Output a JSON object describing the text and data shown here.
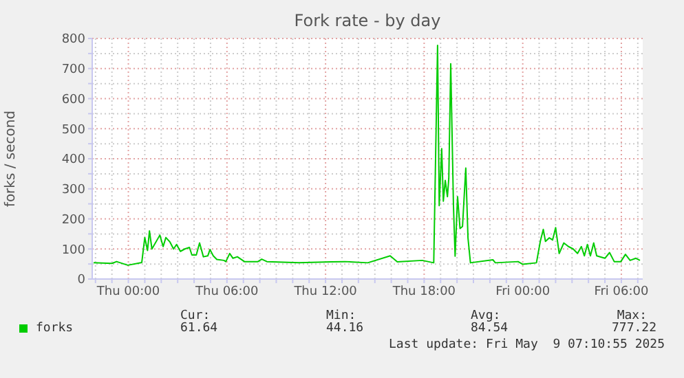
{
  "chart_data": {
    "type": "line",
    "title": "Fork rate - by day",
    "ylabel": "forks / second",
    "x": [
      "2025-05-07T21:53",
      "2025-05-07T23:00",
      "2025-05-07T23:17",
      "2025-05-07T23:58",
      "2025-05-08T00:49",
      "2025-05-08T01:00",
      "2025-05-08T01:10",
      "2025-05-08T01:17",
      "2025-05-08T01:26",
      "2025-05-08T01:55",
      "2025-05-08T02:07",
      "2025-05-08T02:17",
      "2025-05-08T02:32",
      "2025-05-08T02:45",
      "2025-05-08T02:56",
      "2025-05-08T03:10",
      "2025-05-08T03:26",
      "2025-05-08T03:43",
      "2025-05-08T03:52",
      "2025-05-08T04:08",
      "2025-05-08T04:20",
      "2025-05-08T04:34",
      "2025-05-08T04:50",
      "2025-05-08T04:58",
      "2025-05-08T05:10",
      "2025-05-08T05:23",
      "2025-05-08T05:49",
      "2025-05-08T05:56",
      "2025-05-08T06:10",
      "2025-05-08T06:22",
      "2025-05-08T06:38",
      "2025-05-08T07:04",
      "2025-05-08T07:53",
      "2025-05-08T08:07",
      "2025-05-08T08:26",
      "2025-05-08T10:23",
      "2025-05-08T12:20",
      "2025-05-08T13:10",
      "2025-05-08T14:34",
      "2025-05-08T15:56",
      "2025-05-08T16:22",
      "2025-05-08T17:53",
      "2025-05-08T18:35",
      "2025-05-08T18:49",
      "2025-05-08T18:55",
      "2025-05-08T19:04",
      "2025-05-08T19:10",
      "2025-05-08T19:17",
      "2025-05-08T19:25",
      "2025-05-08T19:30",
      "2025-05-08T19:37",
      "2025-05-08T19:47",
      "2025-05-08T19:53",
      "2025-05-08T20:02",
      "2025-05-08T20:11",
      "2025-05-08T20:20",
      "2025-05-08T20:32",
      "2025-05-08T20:40",
      "2025-05-08T20:49",
      "2025-05-08T22:11",
      "2025-05-08T22:20",
      "2025-05-08T23:43",
      "2025-05-09T00:00",
      "2025-05-09T00:50",
      "2025-05-09T01:04",
      "2025-05-09T01:15",
      "2025-05-09T01:23",
      "2025-05-09T01:37",
      "2025-05-09T01:49",
      "2025-05-09T02:00",
      "2025-05-09T02:13",
      "2025-05-09T02:30",
      "2025-05-09T02:47",
      "2025-05-09T03:04",
      "2025-05-09T03:20",
      "2025-05-09T03:34",
      "2025-05-09T03:45",
      "2025-05-09T03:56",
      "2025-05-09T04:07",
      "2025-05-09T04:19",
      "2025-05-09T04:30",
      "2025-05-09T05:00",
      "2025-05-09T05:17",
      "2025-05-09T05:34",
      "2025-05-09T05:58",
      "2025-05-09T06:15",
      "2025-05-09T06:32",
      "2025-05-09T06:53",
      "2025-05-09T07:08"
    ],
    "series": [
      {
        "name": "forks",
        "color": "#00cc00",
        "values": [
          54,
          52,
          58,
          46,
          55,
          138,
          95,
          160,
          100,
          146,
          108,
          138,
          123,
          100,
          115,
          92,
          100,
          105,
          80,
          80,
          120,
          74,
          77,
          98,
          77,
          65,
          62,
          58,
          85,
          69,
          74,
          58,
          58,
          66,
          58,
          54,
          57,
          58,
          54,
          77,
          57,
          62,
          54,
          777,
          244,
          434,
          259,
          328,
          274,
          335,
          716,
          244,
          76,
          274,
          168,
          175,
          369,
          137,
          54,
          64,
          54,
          58,
          49,
          54,
          125,
          165,
          125,
          137,
          130,
          171,
          85,
          120,
          108,
          100,
          85,
          108,
          77,
          115,
          77,
          120,
          77,
          69,
          88,
          58,
          58,
          82,
          62,
          69,
          62
        ]
      }
    ],
    "xlim": [
      "2025-05-07T21:48",
      "2025-05-09T07:18"
    ],
    "xticks": [
      {
        "value": "2025-05-07T22:00",
        "label": null
      },
      {
        "value": "2025-05-07T23:00",
        "label": null
      },
      {
        "value": "2025-05-08T00:00",
        "label": "Thu 00:00"
      },
      {
        "value": "2025-05-08T01:00",
        "label": null
      },
      {
        "value": "2025-05-08T02:00",
        "label": null
      },
      {
        "value": "2025-05-08T03:00",
        "label": null
      },
      {
        "value": "2025-05-08T04:00",
        "label": null
      },
      {
        "value": "2025-05-08T05:00",
        "label": null
      },
      {
        "value": "2025-05-08T06:00",
        "label": "Thu 06:00"
      },
      {
        "value": "2025-05-08T07:00",
        "label": null
      },
      {
        "value": "2025-05-08T08:00",
        "label": null
      },
      {
        "value": "2025-05-08T09:00",
        "label": null
      },
      {
        "value": "2025-05-08T10:00",
        "label": null
      },
      {
        "value": "2025-05-08T11:00",
        "label": null
      },
      {
        "value": "2025-05-08T12:00",
        "label": "Thu 12:00"
      },
      {
        "value": "2025-05-08T13:00",
        "label": null
      },
      {
        "value": "2025-05-08T14:00",
        "label": null
      },
      {
        "value": "2025-05-08T15:00",
        "label": null
      },
      {
        "value": "2025-05-08T16:00",
        "label": null
      },
      {
        "value": "2025-05-08T17:00",
        "label": null
      },
      {
        "value": "2025-05-08T18:00",
        "label": "Thu 18:00"
      },
      {
        "value": "2025-05-08T19:00",
        "label": null
      },
      {
        "value": "2025-05-08T20:00",
        "label": null
      },
      {
        "value": "2025-05-08T21:00",
        "label": null
      },
      {
        "value": "2025-05-08T22:00",
        "label": null
      },
      {
        "value": "2025-05-08T23:00",
        "label": null
      },
      {
        "value": "2025-05-09T00:00",
        "label": "Fri 00:00"
      },
      {
        "value": "2025-05-09T01:00",
        "label": null
      },
      {
        "value": "2025-05-09T02:00",
        "label": null
      },
      {
        "value": "2025-05-09T03:00",
        "label": null
      },
      {
        "value": "2025-05-09T04:00",
        "label": null
      },
      {
        "value": "2025-05-09T05:00",
        "label": null
      },
      {
        "value": "2025-05-09T06:00",
        "label": "Fri 06:00"
      },
      {
        "value": "2025-05-09T07:00",
        "label": null
      }
    ],
    "ylim": [
      0,
      800
    ],
    "yticks": [
      0,
      {
        "value": 50,
        "label": null
      },
      100,
      {
        "value": 150,
        "label": null
      },
      200,
      {
        "value": 250,
        "label": null
      },
      300,
      {
        "value": 350,
        "label": null
      },
      400,
      {
        "value": 450,
        "label": null
      },
      500,
      {
        "value": 550,
        "label": null
      },
      600,
      {
        "value": 650,
        "label": null
      },
      700,
      {
        "value": 750,
        "label": null
      },
      800
    ],
    "grid": true,
    "legend": "bottom left",
    "marker": "none",
    "line_style": "solid",
    "annotations": [
      "Cur:",
      "Min:",
      "Avg:",
      "Max:",
      "61.64",
      "44.16",
      "84.54",
      "777.22",
      "Last update: Fri May  9 07:10:55 2025"
    ]
  }
}
